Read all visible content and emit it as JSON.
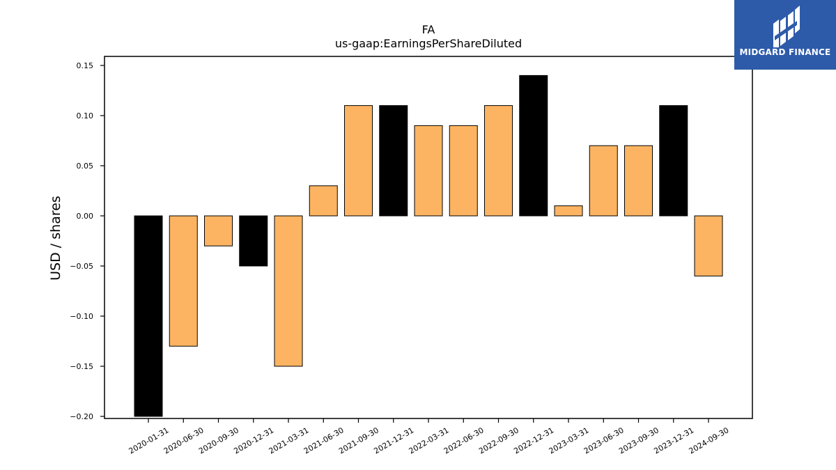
{
  "chart_data": {
    "type": "bar",
    "title": "FA",
    "subtitle": "us-gaap:EarningsPerShareDiluted",
    "ylabel": "USD / shares",
    "ylim": [
      -0.2,
      0.16
    ],
    "yticks": [
      "0.15",
      "0.10",
      "0.05",
      "0.00",
      "−0.05",
      "−0.10",
      "−0.15",
      "−0.20"
    ],
    "ytick_values": [
      0.15,
      0.1,
      0.05,
      0.0,
      -0.05,
      -0.1,
      -0.15,
      -0.2
    ],
    "grid": false,
    "categories": [
      "2020-01-31",
      "2020-06-30",
      "2020-09-30",
      "2020-12-31",
      "2021-03-31",
      "2021-06-30",
      "2021-09-30",
      "2021-12-31",
      "2022-03-31",
      "2022-06-30",
      "2022-09-30",
      "2022-12-31",
      "2023-03-31",
      "2023-06-30",
      "2023-09-30",
      "2023-12-31",
      "2024-09-30"
    ],
    "values": [
      -0.2,
      -0.13,
      -0.03,
      -0.05,
      -0.15,
      0.03,
      0.11,
      0.11,
      0.09,
      0.09,
      0.11,
      0.14,
      0.01,
      0.07,
      0.07,
      0.11,
      -0.06
    ],
    "bar_colors": [
      "#000000",
      "#fdb462",
      "#fdb462",
      "#000000",
      "#fdb462",
      "#fdb462",
      "#fdb462",
      "#000000",
      "#fdb462",
      "#fdb462",
      "#fdb462",
      "#000000",
      "#fdb462",
      "#fdb462",
      "#fdb462",
      "#000000",
      "#fdb462"
    ]
  },
  "logo": {
    "text": "MIDGARD FINANCE",
    "background": "#2d5baa"
  }
}
